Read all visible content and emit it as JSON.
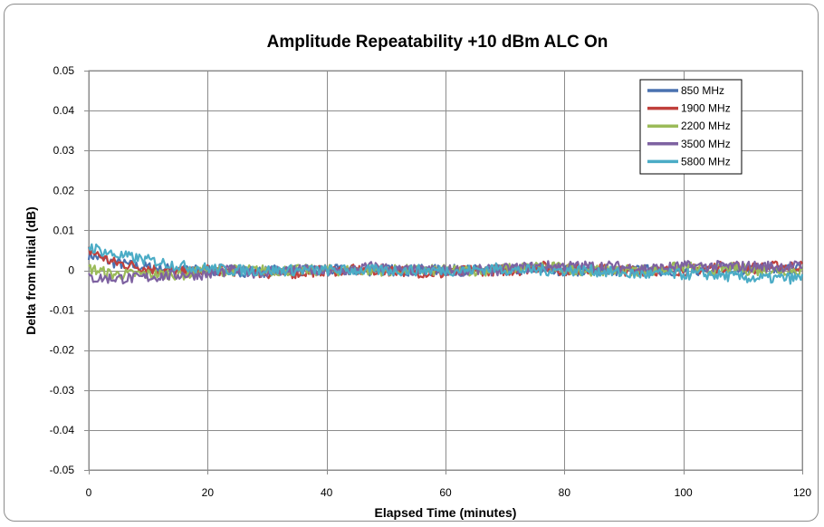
{
  "chart_data": {
    "type": "line",
    "title": "Amplitude Repeatability +10 dBm  ALC On",
    "xlabel": "Elapsed Time (minutes)",
    "ylabel": "Delta from Initial (dB)",
    "xlim": [
      0,
      120
    ],
    "ylim": [
      -0.05,
      0.05
    ],
    "x_ticks": [
      0,
      20,
      40,
      60,
      80,
      100,
      120
    ],
    "y_ticks": [
      0.05,
      0.04,
      0.03,
      0.02,
      0.01,
      0,
      -0.01,
      -0.02,
      -0.03,
      -0.04,
      -0.05
    ],
    "x_tick_labels": [
      "0",
      "20",
      "40",
      "60",
      "80",
      "100",
      "120"
    ],
    "y_tick_labels": [
      "0.05",
      "0.04",
      "0.03",
      "0.02",
      "0.01",
      "0",
      "-0.01",
      "-0.02",
      "-0.03",
      "-0.04",
      "-0.05"
    ],
    "grid": true,
    "legend_position": "top-right",
    "x": [
      0,
      4,
      8,
      12,
      16,
      20,
      24,
      28,
      32,
      36,
      40,
      44,
      48,
      52,
      56,
      60,
      64,
      68,
      72,
      76,
      80,
      84,
      88,
      92,
      96,
      100,
      104,
      108,
      112,
      116,
      120
    ],
    "series": [
      {
        "name": "850 MHz",
        "color": "#4a72b0",
        "values": [
          0.004,
          0.002,
          0.001,
          0.0005,
          0,
          0,
          0,
          -0.0005,
          0,
          0,
          0,
          0,
          0,
          0,
          0,
          0,
          0,
          0,
          0,
          0.0005,
          0,
          0,
          0,
          0,
          0,
          0,
          0,
          0.0005,
          0,
          0,
          0.001
        ]
      },
      {
        "name": "1900 MHz",
        "color": "#c0403c",
        "values": [
          0.005,
          0.002,
          0.001,
          0,
          -0.0005,
          0,
          0,
          -0.0005,
          -0.001,
          -0.0005,
          0,
          0,
          0,
          0,
          -0.0005,
          -0.001,
          0,
          0,
          0,
          0.001,
          0,
          0.0005,
          0,
          0,
          0,
          0,
          0.0005,
          0.001,
          0.0005,
          0.001,
          0.001
        ]
      },
      {
        "name": "2200 MHz",
        "color": "#9bbb59",
        "values": [
          0.0005,
          -0.001,
          -0.001,
          -0.001,
          -0.001,
          0,
          0,
          0,
          0,
          0,
          0,
          0,
          0,
          0,
          0,
          0,
          0,
          0,
          0.0005,
          0.001,
          0.0005,
          0,
          0,
          0,
          0,
          0.001,
          0,
          0.0005,
          0,
          0,
          0
        ]
      },
      {
        "name": "3500 MHz",
        "color": "#7e62a1",
        "values": [
          -0.002,
          -0.002,
          -0.002,
          -0.0015,
          -0.001,
          -0.001,
          0,
          -0.0005,
          0,
          0,
          -0.0005,
          0,
          0.001,
          0,
          0,
          0,
          0,
          0,
          0.0005,
          0.001,
          0.001,
          0.001,
          0.001,
          0.0005,
          0.0005,
          0.001,
          0.001,
          0.001,
          0.001,
          0.001,
          0.001
        ]
      },
      {
        "name": "5800 MHz",
        "color": "#4bacc6",
        "values": [
          0.006,
          0.004,
          0.003,
          0.002,
          0.001,
          0.0005,
          0,
          0,
          0,
          0,
          0,
          0,
          0,
          0,
          0,
          0,
          0,
          0.0005,
          0,
          0,
          0,
          0,
          -0.0005,
          -0.001,
          -0.001,
          -0.001,
          -0.001,
          -0.0015,
          -0.002,
          -0.002,
          -0.002
        ]
      }
    ]
  }
}
